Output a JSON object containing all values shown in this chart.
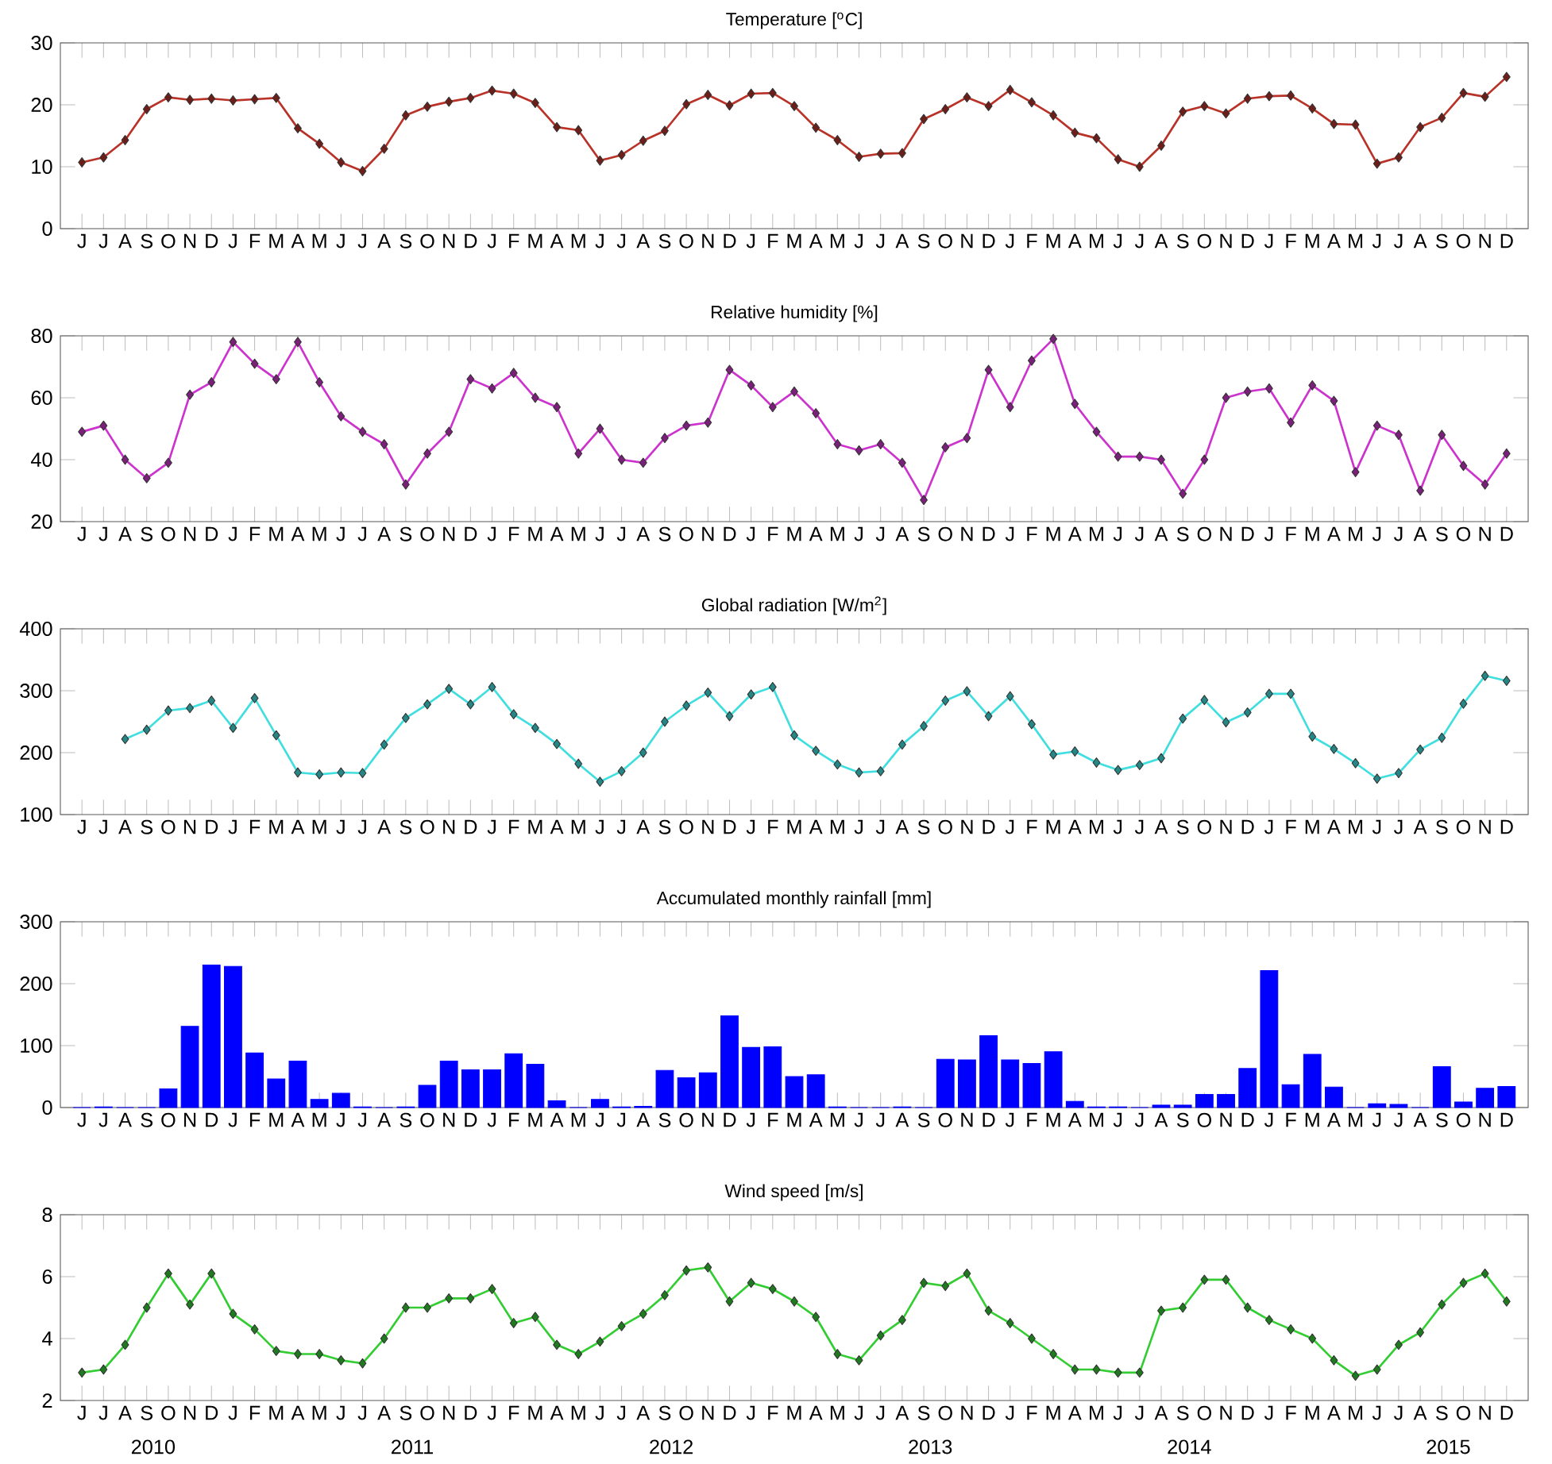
{
  "chart_data": [
    {
      "type": "line",
      "title": "Temperature [$^{o}$C]",
      "color": "#b83228",
      "marker": "diamond",
      "ylim": [
        0,
        30
      ],
      "yticks": [
        0,
        10,
        20,
        30
      ],
      "categories": [
        "J",
        "J",
        "A",
        "S",
        "O",
        "N",
        "D",
        "J",
        "F",
        "M",
        "A",
        "M",
        "J",
        "J",
        "A",
        "S",
        "O",
        "N",
        "D",
        "J",
        "F",
        "M",
        "A",
        "M",
        "J",
        "J",
        "A",
        "S",
        "O",
        "N",
        "D",
        "J",
        "F",
        "M",
        "A",
        "M",
        "J",
        "J",
        "A",
        "S",
        "O",
        "N",
        "D",
        "J",
        "F",
        "M",
        "A",
        "M",
        "J",
        "J",
        "A",
        "S",
        "O",
        "N",
        "D",
        "J",
        "F",
        "M",
        "A",
        "M",
        "J",
        "J",
        "A",
        "S",
        "O",
        "N",
        "D"
      ],
      "values": [
        10.7,
        11.5,
        14.3,
        19.3,
        21.2,
        20.8,
        21.0,
        20.7,
        20.9,
        21.1,
        16.2,
        13.7,
        10.7,
        9.3,
        12.9,
        18.3,
        19.7,
        20.5,
        21.1,
        22.3,
        21.8,
        20.3,
        16.4,
        15.9,
        11.0,
        11.9,
        14.2,
        15.8,
        20.1,
        21.6,
        19.9,
        21.8,
        21.9,
        19.8,
        16.3,
        14.3,
        11.6,
        12.1,
        12.2,
        17.7,
        19.3,
        21.2,
        19.8,
        22.4,
        20.4,
        18.3,
        15.5,
        14.6,
        11.2,
        10.0,
        13.4,
        18.9,
        19.8,
        18.6,
        21.0,
        21.4,
        21.5,
        19.4,
        16.9,
        16.8,
        10.5,
        11.5,
        16.4,
        17.9,
        21.9,
        21.3,
        24.5
      ]
    },
    {
      "type": "line",
      "title": "Relative humidity [%]",
      "color": "#cc33cc",
      "marker": "diamond",
      "ylim": [
        20,
        80
      ],
      "yticks": [
        20,
        40,
        60,
        80
      ],
      "categories": [
        "J",
        "J",
        "A",
        "S",
        "O",
        "N",
        "D",
        "J",
        "F",
        "M",
        "A",
        "M",
        "J",
        "J",
        "A",
        "S",
        "O",
        "N",
        "D",
        "J",
        "F",
        "M",
        "A",
        "M",
        "J",
        "J",
        "A",
        "S",
        "O",
        "N",
        "D",
        "J",
        "F",
        "M",
        "A",
        "M",
        "J",
        "J",
        "A",
        "S",
        "O",
        "N",
        "D",
        "J",
        "F",
        "M",
        "A",
        "M",
        "J",
        "J",
        "A",
        "S",
        "O",
        "N",
        "D",
        "J",
        "F",
        "M",
        "A",
        "M",
        "J",
        "J",
        "A",
        "S",
        "O",
        "N",
        "D"
      ],
      "values": [
        49,
        51,
        40,
        34,
        39,
        61,
        65,
        78,
        71,
        66,
        78,
        65,
        54,
        49,
        45,
        32,
        42,
        49,
        66,
        63,
        68,
        60,
        57,
        42,
        50,
        40,
        39,
        47,
        51,
        52,
        69,
        64,
        57,
        62,
        55,
        45,
        43,
        45,
        39,
        27,
        44,
        47,
        69,
        57,
        72,
        79,
        58,
        49,
        41,
        41,
        40,
        29,
        40,
        60,
        62,
        63,
        52,
        64,
        59,
        36,
        51,
        48,
        30,
        48,
        38,
        32,
        42
      ]
    },
    {
      "type": "line",
      "title": "Global radiation [W/m$^{2}$]",
      "color": "#40dede",
      "marker": "diamond",
      "ylim": [
        100,
        400
      ],
      "yticks": [
        100,
        200,
        300,
        400
      ],
      "categories": [
        "J",
        "J",
        "A",
        "S",
        "O",
        "N",
        "D",
        "J",
        "F",
        "M",
        "A",
        "M",
        "J",
        "J",
        "A",
        "S",
        "O",
        "N",
        "D",
        "J",
        "F",
        "M",
        "A",
        "M",
        "J",
        "J",
        "A",
        "S",
        "O",
        "N",
        "D",
        "J",
        "F",
        "M",
        "A",
        "M",
        "J",
        "J",
        "A",
        "S",
        "O",
        "N",
        "D",
        "J",
        "F",
        "M",
        "A",
        "M",
        "J",
        "J",
        "A",
        "S",
        "O",
        "N",
        "D",
        "J",
        "F",
        "M",
        "A",
        "M",
        "J",
        "J",
        "A",
        "S",
        "O",
        "N",
        "D"
      ],
      "values": [
        null,
        null,
        222,
        237,
        268,
        272,
        284,
        240,
        288,
        228,
        168,
        165,
        168,
        167,
        213,
        256,
        278,
        303,
        278,
        306,
        262,
        240,
        214,
        182,
        153,
        170,
        200,
        250,
        276,
        297,
        259,
        294,
        306,
        228,
        203,
        181,
        168,
        170,
        213,
        243,
        284,
        299,
        259,
        291,
        246,
        197,
        202,
        184,
        172,
        180,
        191,
        255,
        285,
        249,
        265,
        295,
        295,
        226,
        206,
        183,
        158,
        167,
        205,
        224,
        279,
        324,
        316
      ]
    },
    {
      "type": "bar",
      "title": "Accumulated monthly rainfall [mm]",
      "color": "#0000ff",
      "ylim": [
        0,
        300
      ],
      "yticks": [
        0,
        100,
        200,
        300
      ],
      "categories": [
        "J",
        "J",
        "A",
        "S",
        "O",
        "N",
        "D",
        "J",
        "F",
        "M",
        "A",
        "M",
        "J",
        "J",
        "A",
        "S",
        "O",
        "N",
        "D",
        "J",
        "F",
        "M",
        "A",
        "M",
        "J",
        "J",
        "A",
        "S",
        "O",
        "N",
        "D",
        "J",
        "F",
        "M",
        "A",
        "M",
        "J",
        "J",
        "A",
        "S",
        "O",
        "N",
        "D",
        "J",
        "F",
        "M",
        "A",
        "M",
        "J",
        "J",
        "A",
        "S",
        "O",
        "N",
        "D",
        "J",
        "F",
        "M",
        "A",
        "M",
        "J",
        "J",
        "A",
        "S",
        "O",
        "N",
        "D"
      ],
      "values": [
        0,
        1,
        0,
        0,
        30,
        131,
        230,
        228,
        88,
        46,
        75,
        13,
        23,
        1,
        0,
        1,
        36,
        75,
        61,
        61,
        87,
        70,
        11,
        0,
        13,
        1,
        2,
        60,
        48,
        56,
        148,
        97,
        98,
        50,
        53,
        1,
        0,
        0,
        1,
        0,
        78,
        77,
        116,
        77,
        71,
        90,
        10,
        1,
        1,
        0,
        4,
        4,
        21,
        21,
        63,
        221,
        37,
        86,
        33,
        0,
        6,
        5,
        0,
        66,
        9,
        31,
        34
      ]
    },
    {
      "type": "line",
      "title": "Wind speed [m/s]",
      "color": "#33cc33",
      "marker": "diamond",
      "ylim": [
        2,
        8
      ],
      "yticks": [
        2,
        4,
        6,
        8
      ],
      "categories": [
        "J",
        "J",
        "A",
        "S",
        "O",
        "N",
        "D",
        "J",
        "F",
        "M",
        "A",
        "M",
        "J",
        "J",
        "A",
        "S",
        "O",
        "N",
        "D",
        "J",
        "F",
        "M",
        "A",
        "M",
        "J",
        "J",
        "A",
        "S",
        "O",
        "N",
        "D",
        "J",
        "F",
        "M",
        "A",
        "M",
        "J",
        "J",
        "A",
        "S",
        "O",
        "N",
        "D",
        "J",
        "F",
        "M",
        "A",
        "M",
        "J",
        "J",
        "A",
        "S",
        "O",
        "N",
        "D",
        "J",
        "F",
        "M",
        "A",
        "M",
        "J",
        "J",
        "A",
        "S",
        "O",
        "N",
        "D"
      ],
      "values": [
        2.9,
        3.0,
        3.8,
        5.0,
        6.1,
        5.1,
        6.1,
        4.8,
        4.3,
        3.6,
        3.5,
        3.5,
        3.3,
        3.2,
        4.0,
        5.0,
        5.0,
        5.3,
        5.3,
        5.6,
        4.5,
        4.7,
        3.8,
        3.5,
        3.9,
        4.4,
        4.8,
        5.4,
        6.2,
        6.3,
        5.2,
        5.8,
        5.6,
        5.2,
        4.7,
        3.5,
        3.3,
        4.1,
        4.6,
        5.8,
        5.7,
        6.1,
        4.9,
        4.5,
        4.0,
        3.5,
        3.0,
        3.0,
        2.9,
        2.9,
        4.9,
        5.0,
        5.9,
        5.9,
        5.0,
        4.6,
        4.3,
        4.0,
        3.3,
        2.8,
        3.0,
        3.8,
        4.2,
        5.1,
        5.8,
        6.1,
        5.2
      ],
      "annotations": [
        "2010",
        "2011",
        "2012",
        "2013",
        "2014",
        "2015"
      ]
    }
  ]
}
